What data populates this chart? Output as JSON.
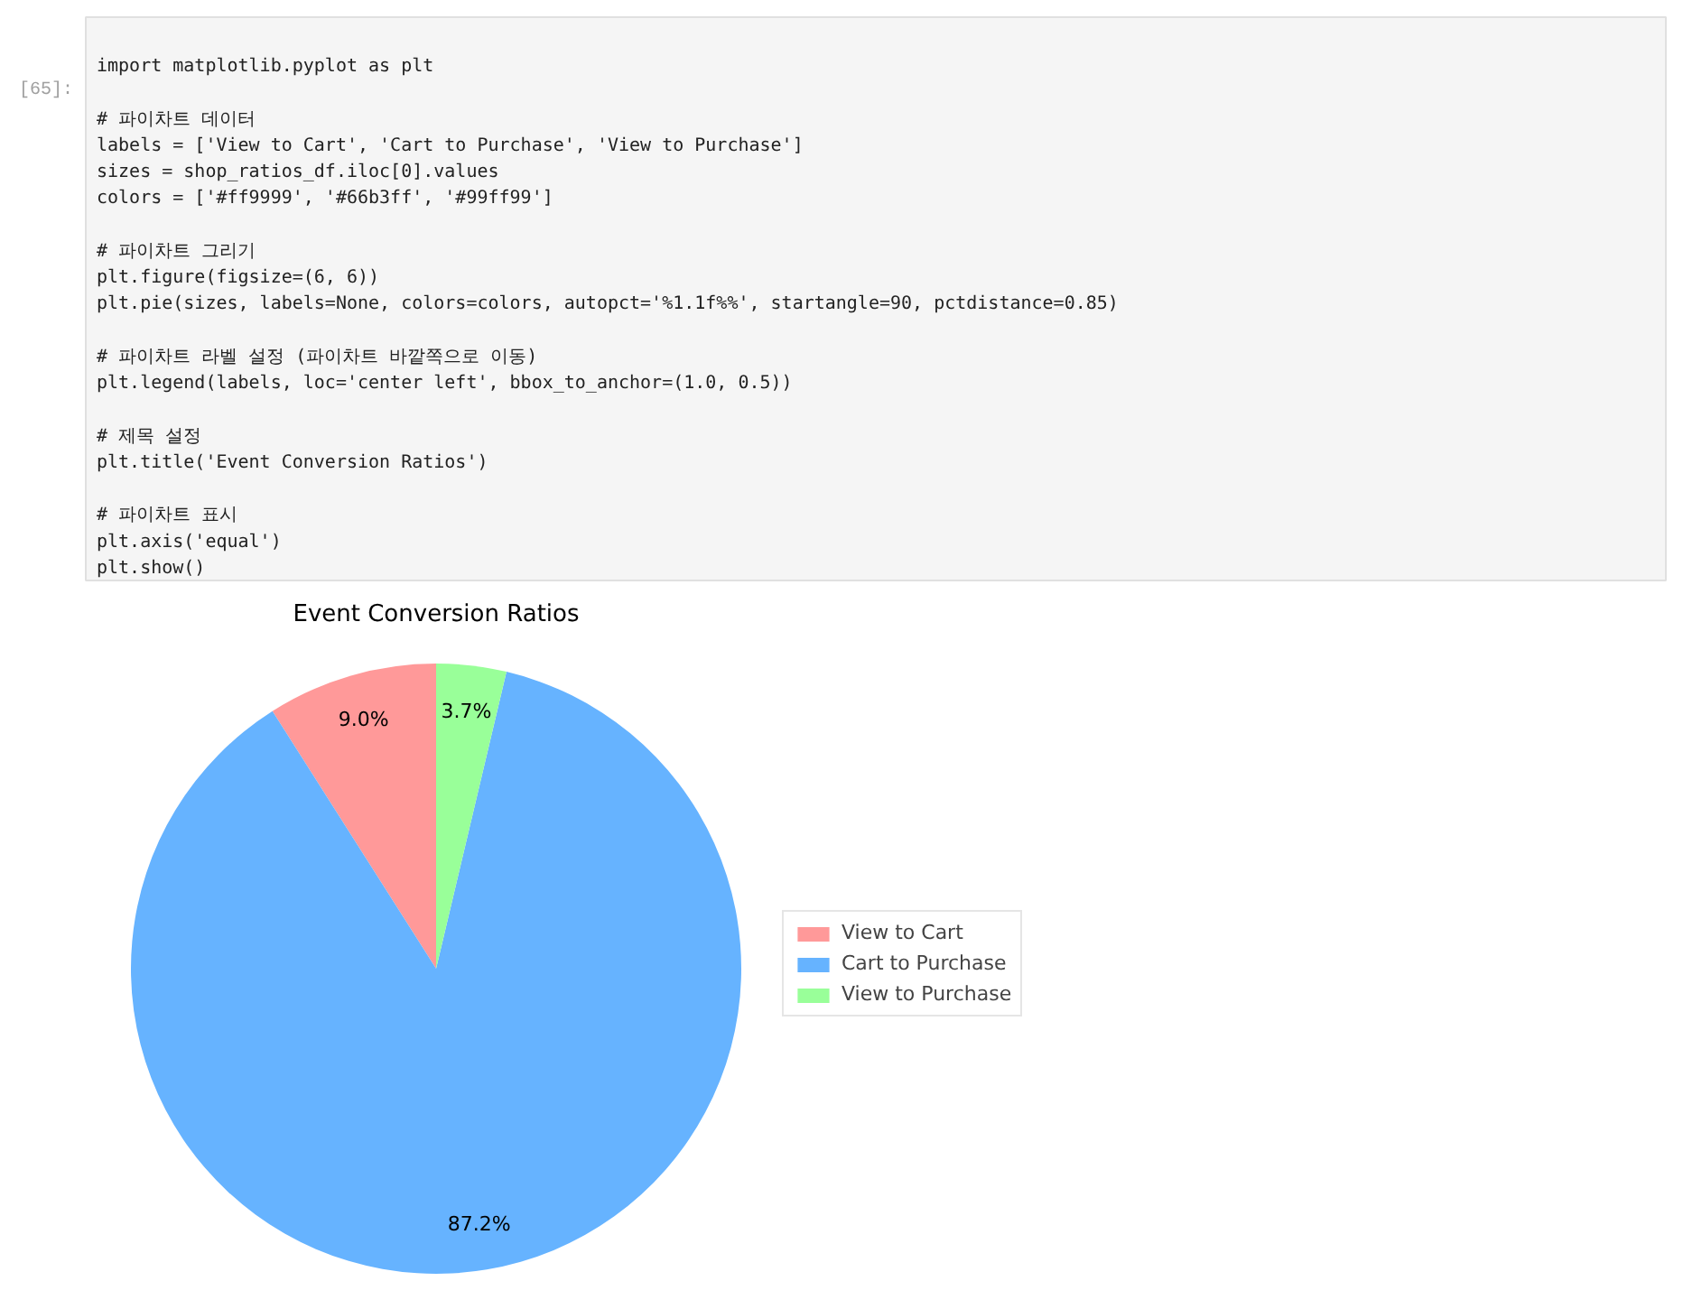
{
  "chart_data": {
    "type": "pie",
    "title": "Event Conversion Ratios",
    "categories": [
      "View to Cart",
      "Cart to Purchase",
      "View to Purchase"
    ],
    "values": [
      9.0,
      87.2,
      3.7
    ],
    "colors": [
      "#ff9999",
      "#66b3ff",
      "#99ff99"
    ],
    "value_labels": [
      "9.0%",
      "87.2%",
      "3.7%"
    ],
    "legend": "right",
    "annotations": [
      "[65]:",
      "import matplotlib.pyplot as plt\n\n# 파이차트 데이터\nlabels = ['View to Cart', 'Cart to Purchase', 'View to Purchase']\nsizes = shop_ratios_df.iloc[0].values\ncolors = ['#ff9999', '#66b3ff', '#99ff99']\n\n# 파이차트 그리기\nplt.figure(figsize=(6, 6))\nplt.pie(sizes, labels=None, colors=colors, autopct='%1.1f%%', startangle=90, pctdistance=0.85)\n\n# 파이차트 라벨 설정 (파이차트 바깥쪽으로 이동)\nplt.legend(labels, loc='center left', bbox_to_anchor=(1.0, 0.5))\n\n# 제목 설정\nplt.title('Event Conversion Ratios')\n\n# 파이차트 표시\nplt.axis('equal')\nplt.show()"
    ]
  }
}
